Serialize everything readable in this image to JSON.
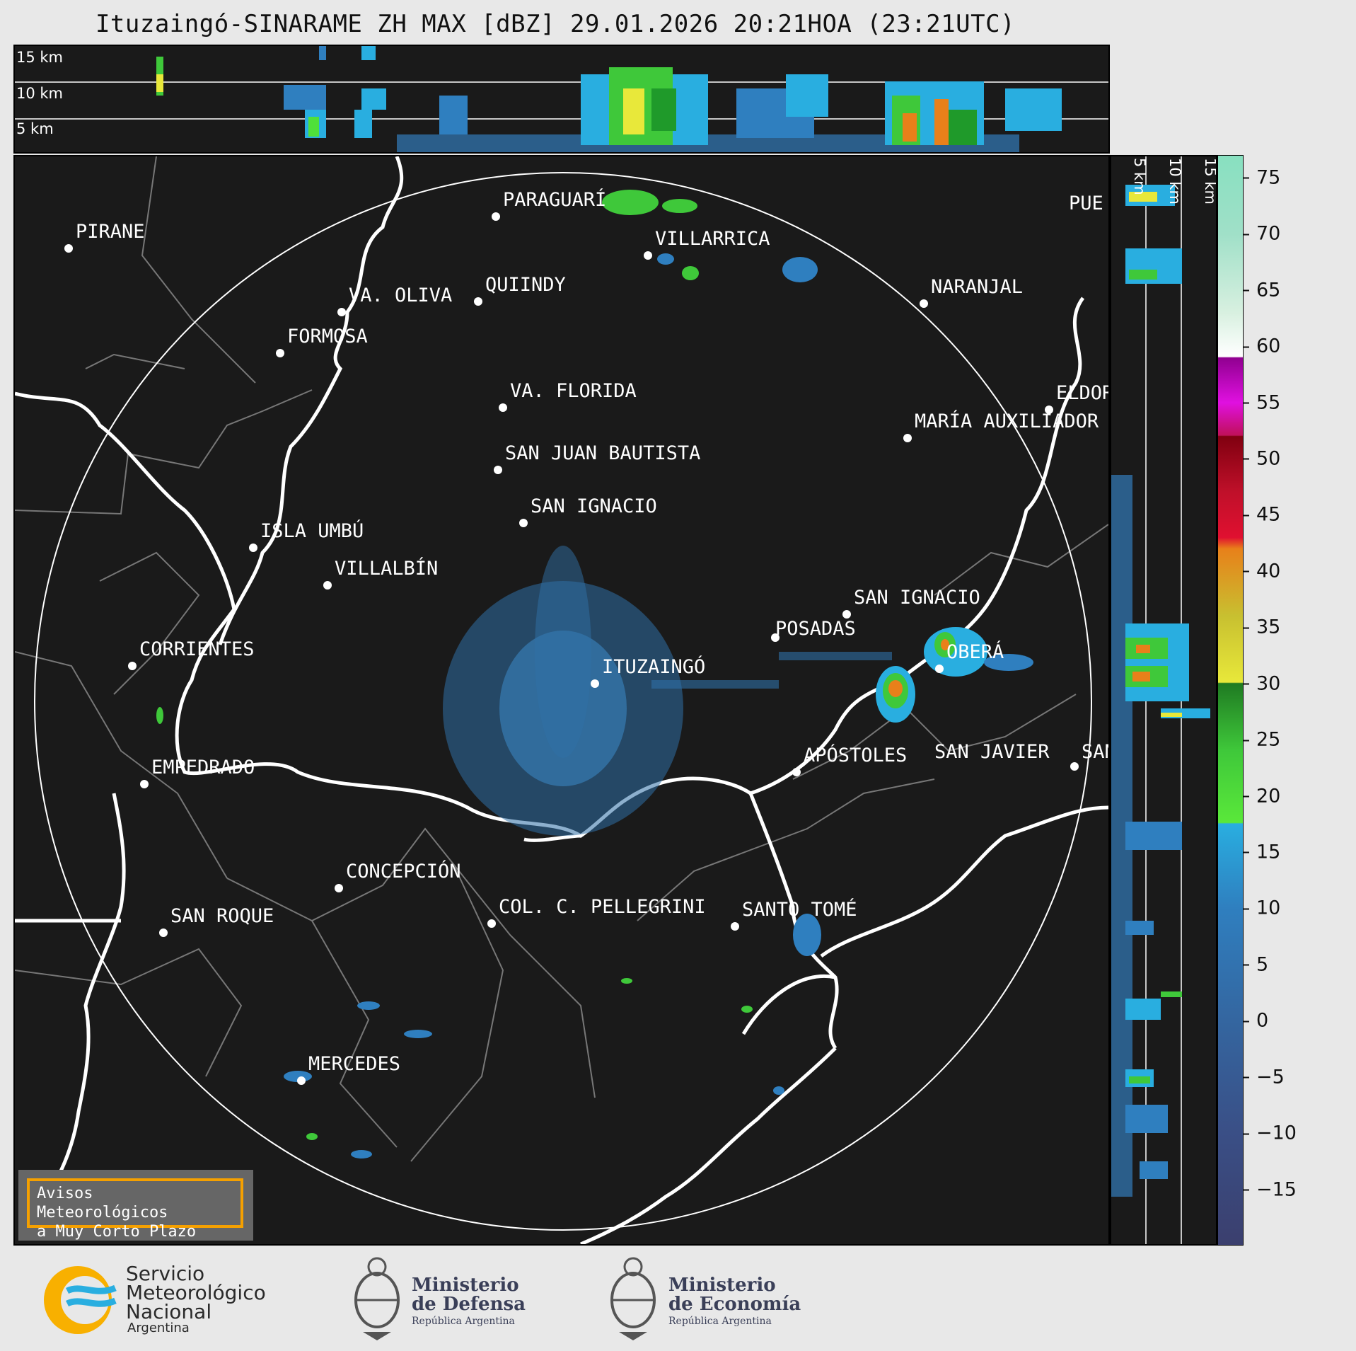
{
  "title": "Ituzaingó-SINARAME ZH MAX [dBZ] 29.01.2026 20:21HOA (23:21UTC)",
  "height_labels": [
    "15 km",
    "10 km",
    "5 km"
  ],
  "cities": [
    {
      "name": "PARAGUARÍ"
    },
    {
      "name": "VILLARRICA"
    },
    {
      "name": "PIRANE"
    },
    {
      "name": "VA. OLIVA"
    },
    {
      "name": "QUIINDY"
    },
    {
      "name": "NARANJAL"
    },
    {
      "name": "FORMOSA"
    },
    {
      "name": "VA. FLORIDA"
    },
    {
      "name": "ELDOR"
    },
    {
      "name": "MARÍA AUXILIADOR"
    },
    {
      "name": "SAN JUAN BAUTISTA"
    },
    {
      "name": "SAN IGNACIO"
    },
    {
      "name": "ISLA UMBÚ"
    },
    {
      "name": "VILLALBÍN"
    },
    {
      "name": "SAN IGNACIO"
    },
    {
      "name": "POSADAS"
    },
    {
      "name": "CORRIENTES"
    },
    {
      "name": "OBERÁ"
    },
    {
      "name": "ITUZAINGÓ"
    },
    {
      "name": "APÓSTOLES"
    },
    {
      "name": "SAN JAVIER"
    },
    {
      "name": "SAN"
    },
    {
      "name": "EMPEDRADO"
    },
    {
      "name": "CONCEPCIÓN"
    },
    {
      "name": "SAN ROQUE"
    },
    {
      "name": "COL. C. PELLEGRINI"
    },
    {
      "name": "SANTO TOMÉ"
    },
    {
      "name": "MERCEDES"
    },
    {
      "name": "PUE"
    }
  ],
  "colorbar": {
    "ticks": [
      "75",
      "70",
      "65",
      "60",
      "55",
      "50",
      "45",
      "40",
      "35",
      "30",
      "25",
      "20",
      "15",
      "10",
      "5",
      "0",
      "−5",
      "−10",
      "−15"
    ],
    "range": [
      -20,
      77
    ],
    "colors": {
      "navy": "#3b3f6e",
      "blue": "#2f7fbf",
      "light_blue": "#29aee0",
      "green": "#1f9a2a",
      "yellow": "#e8e83a",
      "orange": "#e8801a",
      "red": "#d0102a",
      "magenta": "#e010e0",
      "white": "#ffffff",
      "mint": "#88e0c0"
    }
  },
  "warning": {
    "line1": "Avisos Meteorológicos",
    "line2": "a Muy Corto Plazo"
  },
  "logos": {
    "smn": {
      "line1": "Servicio",
      "line2": "Meteorológico",
      "line3": "Nacional",
      "line4": "Argentina"
    },
    "defensa": {
      "line1": "Ministerio",
      "line2": "de Defensa",
      "line3": "República Argentina"
    },
    "economia": {
      "line1": "Ministerio",
      "line2": "de Economía",
      "line3": "República Argentina"
    }
  }
}
